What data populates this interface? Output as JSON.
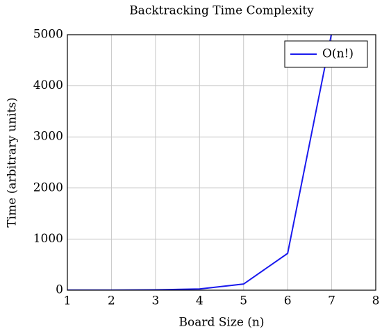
{
  "chart_data": {
    "type": "line",
    "title": "Backtracking Time Complexity",
    "x_label": "Board Size (n)",
    "y_label": "Time (arbitrary units)",
    "x": [
      1,
      2,
      3,
      4,
      5,
      6,
      7
    ],
    "series": [
      {
        "name": "O(n!)",
        "color": "#1a1aee",
        "values": [
          1,
          2,
          6,
          24,
          120,
          720,
          5040
        ]
      }
    ],
    "xlim": [
      1,
      8
    ],
    "xticks": [
      1,
      2,
      3,
      4,
      5,
      6,
      7,
      8
    ],
    "ylim": [
      0,
      5000
    ],
    "yticks": [
      0,
      1000,
      2000,
      3000,
      4000,
      5000
    ],
    "grid": true,
    "legend": "top-right"
  }
}
